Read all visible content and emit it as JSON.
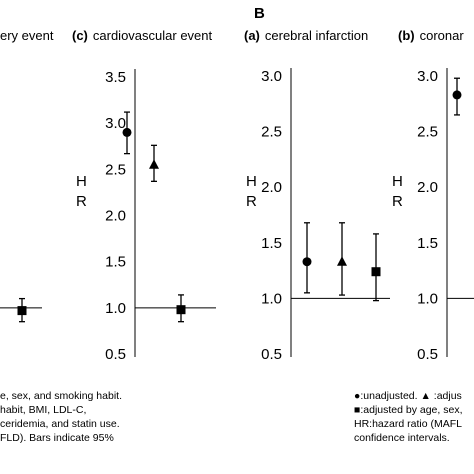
{
  "section_label": "B",
  "panels": {
    "left_partial": {
      "title": "ery event"
    },
    "cardio": {
      "letter": "(c)",
      "title": "cardiovascular event"
    },
    "cerebral": {
      "letter": "(a)",
      "title": "cerebral infarction"
    },
    "coronary": {
      "letter": "(b)",
      "title": "coronar"
    }
  },
  "y_axis_label_letters": [
    "H",
    "R"
  ],
  "footnote_left": [
    "e, sex, and smoking habit.",
    "habit, BMI, LDL-C,",
    "ceridemia, and statin use.",
    "FLD). Bars indicate 95%"
  ],
  "footnote_right": [
    {
      "symbol": "●",
      "text": ":unadjusted.  ▲ :adjus"
    },
    {
      "symbol": "■",
      "text": ":adjusted by age, sex,"
    },
    {
      "symbol": "",
      "text": "HR:hazard ratio (MAFL"
    },
    {
      "symbol": "",
      "text": "confidence intervals."
    }
  ],
  "chart_data": [
    {
      "type": "scatter",
      "panel": "left_partial",
      "title": "ery event",
      "ylim": [
        0.5,
        3.5
      ],
      "y_ticks": [],
      "reference_line": 1.0,
      "points": [
        {
          "marker": "square",
          "y": 0.97,
          "ci": [
            0.85,
            1.1
          ]
        }
      ]
    },
    {
      "type": "scatter",
      "panel": "cardio",
      "title": "(c) cardiovascular event",
      "ylabel": "HR",
      "ylim": [
        0.5,
        3.5
      ],
      "y_ticks": [
        "0.5",
        "1.0",
        "1.5",
        "2.0",
        "2.5",
        "3.0",
        "3.5"
      ],
      "reference_line": 1.0,
      "points": [
        {
          "marker": "circle",
          "label": "unadjusted",
          "y": 2.9,
          "ci": [
            2.67,
            3.12
          ]
        },
        {
          "marker": "triangle",
          "label": "adjusted",
          "y": 2.55,
          "ci": [
            2.37,
            2.76
          ]
        },
        {
          "marker": "square",
          "label": "adjusted",
          "y": 0.98,
          "ci": [
            0.85,
            1.14
          ]
        }
      ]
    },
    {
      "type": "scatter",
      "panel": "cerebral",
      "title": "(a) cerebral infarction",
      "ylabel": "HR",
      "ylim": [
        0.5,
        3.0
      ],
      "y_ticks": [
        "0.5",
        "1.0",
        "1.5",
        "2.0",
        "2.5",
        "3.0"
      ],
      "reference_line": 1.0,
      "points": [
        {
          "marker": "circle",
          "label": "unadjusted",
          "y": 1.33,
          "ci": [
            1.05,
            1.68
          ]
        },
        {
          "marker": "triangle",
          "label": "adjusted",
          "y": 1.33,
          "ci": [
            1.03,
            1.68
          ]
        },
        {
          "marker": "square",
          "label": "adjusted",
          "y": 1.24,
          "ci": [
            0.98,
            1.58
          ]
        }
      ]
    },
    {
      "type": "scatter",
      "panel": "coronary",
      "title": "(b) coronar",
      "ylabel": "HR",
      "ylim": [
        0.5,
        3.0
      ],
      "y_ticks": [
        "0.5",
        "1.0",
        "1.5",
        "2.0",
        "2.5",
        "3.0"
      ],
      "reference_line": 1.0,
      "points": [
        {
          "marker": "circle",
          "label": "unadjusted",
          "y": 2.83,
          "ci": [
            2.65,
            2.98
          ]
        }
      ]
    }
  ]
}
